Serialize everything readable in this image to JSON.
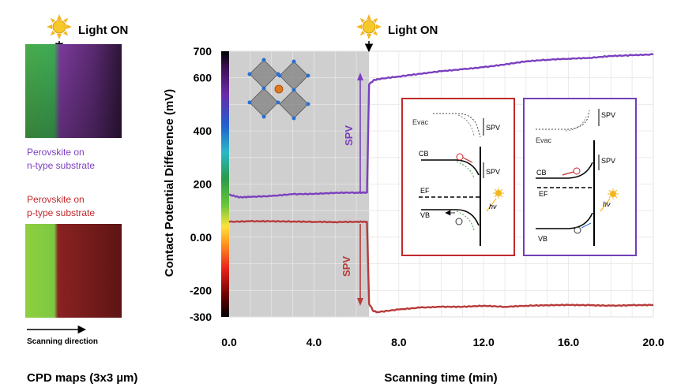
{
  "figure": {
    "light_on_left": "Light ON",
    "light_on_right": "Light ON",
    "map_n_label_1": "Perovskite on",
    "map_n_label_2": "n-type substrate",
    "map_p_label_1": "Perovskite on",
    "map_p_label_2": "p-type substrate",
    "scan_direction": "Scanning direction",
    "cpd_caption": "CPD maps (3x3 µm)",
    "spv_top": "SPV",
    "spv_bottom": "SPV",
    "colors": {
      "n_type": "#7b3fbf",
      "p_type": "#b83a3a",
      "dark_region": "#cfcfcf",
      "inset_red_border": "#c2282c",
      "inset_purple_border": "#7040b8"
    }
  },
  "insets": {
    "red": {
      "evac": "Evac",
      "spv1": "SPV",
      "spv2": "SPV",
      "cb": "CB",
      "ef": "EF",
      "vb": "VB",
      "hv": "hν"
    },
    "purple": {
      "spv1": "SPV",
      "spv2": "SPV",
      "evac": "Evac",
      "cb": "CB",
      "ef": "EF",
      "vb": "VB",
      "hv": "hν"
    }
  },
  "chart_data": {
    "type": "line",
    "xlabel": "Scanning time (min)",
    "ylabel": "Contact Potential Difference (mV)",
    "xlim": [
      0,
      20
    ],
    "ylim": [
      -300,
      700
    ],
    "x_ticks": [
      0,
      4,
      8,
      12,
      16,
      20
    ],
    "x_tick_labels": [
      "0.0",
      "4.0",
      "8.0",
      "12.0",
      "16.0",
      "20.0"
    ],
    "y_ticks": [
      700,
      600,
      400,
      200,
      0,
      -200,
      -300
    ],
    "y_tick_labels": [
      "700",
      "600",
      "400",
      "200",
      "0.00",
      "-200",
      "-300"
    ],
    "grid": true,
    "dark_region_x": [
      0,
      6.6
    ],
    "series": [
      {
        "color": "#7b3fbf",
        "x": [
          0,
          0.5,
          1,
          2,
          3,
          4,
          5,
          6,
          6.5,
          6.6,
          6.8,
          7,
          8,
          9,
          10,
          11,
          12,
          13,
          14,
          15,
          16,
          17,
          18,
          19,
          20
        ],
        "y": [
          160,
          150,
          152,
          155,
          162,
          163,
          167,
          168,
          168,
          575,
          590,
          595,
          605,
          615,
          625,
          632,
          640,
          650,
          662,
          668,
          672,
          675,
          682,
          685,
          688
        ]
      },
      {
        "color": "#b83a3a",
        "x": [
          0,
          1,
          2,
          3,
          4,
          5,
          6,
          6.5,
          6.6,
          6.8,
          7,
          8,
          9,
          10,
          11,
          12,
          13,
          14,
          15,
          16,
          17,
          18,
          19,
          20
        ],
        "y": [
          58,
          60,
          60,
          59,
          58,
          57,
          58,
          58,
          -250,
          -278,
          -282,
          -272,
          -265,
          -262,
          -262,
          -258,
          -262,
          -258,
          -256,
          -255,
          -256,
          -258,
          -256,
          -255
        ]
      }
    ]
  }
}
